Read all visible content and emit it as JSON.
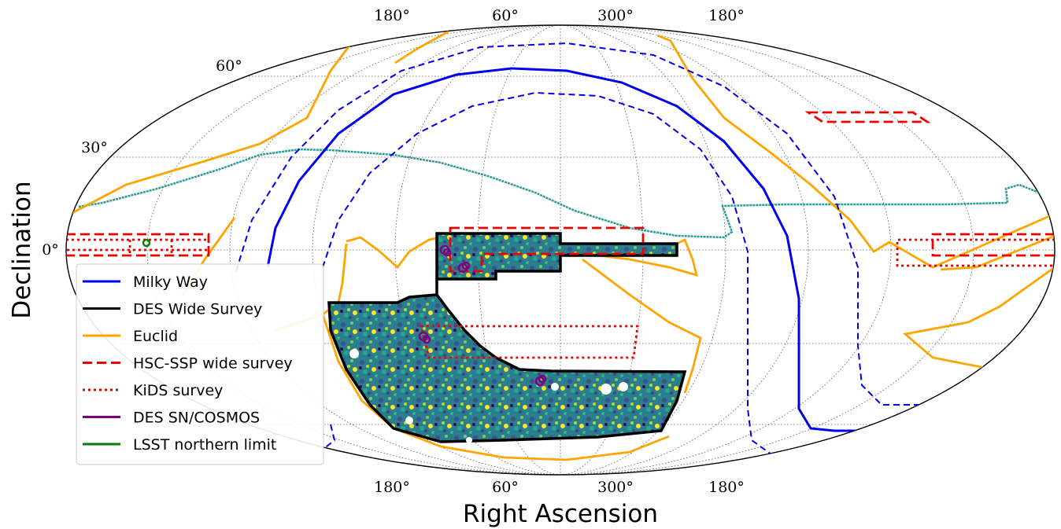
{
  "chart_data": {
    "type": "map",
    "projection": "mollweide",
    "xlabel": "Right Ascension",
    "ylabel": "Declination",
    "x_ticks_top": [
      "180°",
      "60°",
      "300°",
      "180°"
    ],
    "x_ticks_bottom": [
      "180°",
      "60°",
      "300°",
      "180°"
    ],
    "y_ticks": [
      "60°",
      "30°",
      "0°"
    ],
    "grid": true,
    "legend_position": "lower-left",
    "series": [
      {
        "name": "Milky Way",
        "color": "#0000ee",
        "style": "solid"
      },
      {
        "name": "DES Wide Survey",
        "color": "#000000",
        "style": "solid"
      },
      {
        "name": "Euclid",
        "color": "#ffa500",
        "style": "solid"
      },
      {
        "name": "HSC-SSP wide survey",
        "color": "#ee0000",
        "style": "dashed"
      },
      {
        "name": "KiDS survey",
        "color": "#ee0000",
        "style": "dotted"
      },
      {
        "name": "DES SN/COSMOS",
        "color": "#800080",
        "style": "solid"
      },
      {
        "name": "LSST northern limit",
        "color": "#008000",
        "style": "solid"
      }
    ],
    "footprint_fill": "viridis density map"
  }
}
